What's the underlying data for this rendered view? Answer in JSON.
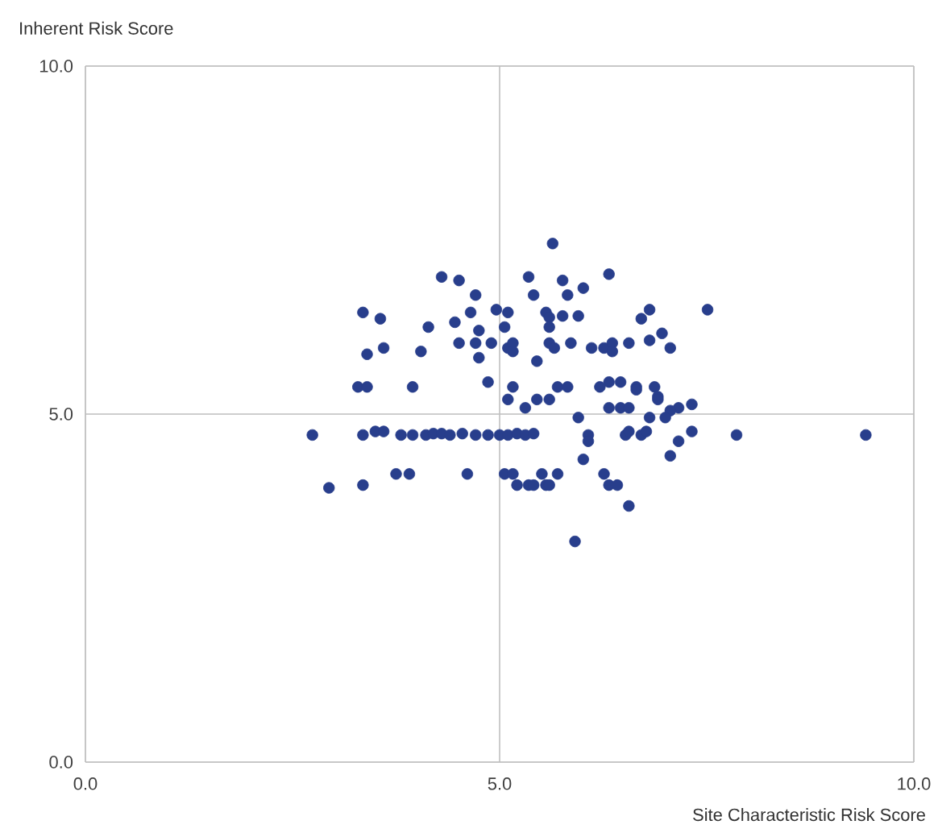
{
  "chart_data": {
    "type": "scatter",
    "xlabel": "Site Characteristic Risk Score",
    "ylabel": "Inherent Risk Score",
    "xlim": [
      0,
      10
    ],
    "ylim": [
      0,
      10
    ],
    "xticks": [
      {
        "value": 0,
        "label": "0.0"
      },
      {
        "value": 5,
        "label": "5.0"
      },
      {
        "value": 10,
        "label": "10.0"
      }
    ],
    "yticks": [
      {
        "value": 0,
        "label": "0.0"
      },
      {
        "value": 5,
        "label": "5.0"
      },
      {
        "value": 10,
        "label": "10.0"
      }
    ],
    "grid": true,
    "marker": "circle",
    "series": [
      {
        "color": "#283e8c",
        "x": [
          5.64,
          4.3,
          4.51,
          5.35,
          5.76,
          6.01,
          4.71,
          5.41,
          5.82,
          3.35,
          3.56,
          4.65,
          4.96,
          5.1,
          5.56,
          5.6,
          5.76,
          5.95,
          4.14,
          4.46,
          4.75,
          5.06,
          5.6,
          3.4,
          3.6,
          4.05,
          4.51,
          4.71,
          4.9,
          5.1,
          5.16,
          5.16,
          5.6,
          5.66,
          5.86,
          6.11,
          4.75,
          5.45,
          3.29,
          3.4,
          3.95,
          4.86,
          5.16,
          5.7,
          5.82,
          5.1,
          5.31,
          5.45,
          5.6,
          5.95,
          2.74,
          3.35,
          3.5,
          3.6,
          3.81,
          3.95,
          4.11,
          4.2,
          4.3,
          4.4,
          4.55,
          4.71,
          4.86,
          5.0,
          5.1,
          5.21,
          5.31,
          5.41,
          6.07,
          6.07,
          6.01,
          3.75,
          3.91,
          4.61,
          5.06,
          5.16,
          5.51,
          5.7,
          2.94,
          3.35,
          5.21,
          5.35,
          5.41,
          5.56,
          5.6,
          5.91,
          6.32,
          6.81,
          7.51,
          6.71,
          6.96,
          6.81,
          6.56,
          7.06,
          6.26,
          6.36,
          6.36,
          6.21,
          6.32,
          6.46,
          6.65,
          6.65,
          6.87,
          6.91,
          6.91,
          6.32,
          6.46,
          6.56,
          7.32,
          7.16,
          7.06,
          7.0,
          6.81,
          6.52,
          6.56,
          6.71,
          6.77,
          7.32,
          7.16,
          7.86,
          9.42,
          7.06,
          6.26,
          6.32,
          6.42,
          6.56
        ],
        "values": [
          7.45,
          6.97,
          6.92,
          6.97,
          6.92,
          6.81,
          6.71,
          6.71,
          6.71,
          6.46,
          6.37,
          6.46,
          6.5,
          6.46,
          6.46,
          6.39,
          6.41,
          6.41,
          6.25,
          6.32,
          6.2,
          6.25,
          6.25,
          5.86,
          5.95,
          5.9,
          6.02,
          6.02,
          6.02,
          5.95,
          6.02,
          5.9,
          6.02,
          5.95,
          6.02,
          5.95,
          5.81,
          5.76,
          5.39,
          5.39,
          5.39,
          5.46,
          5.39,
          5.39,
          5.39,
          5.21,
          5.09,
          5.21,
          5.21,
          4.95,
          4.7,
          4.7,
          4.75,
          4.75,
          4.7,
          4.7,
          4.7,
          4.72,
          4.72,
          4.7,
          4.72,
          4.7,
          4.7,
          4.7,
          4.7,
          4.72,
          4.7,
          4.72,
          4.7,
          4.61,
          4.35,
          4.14,
          4.14,
          4.14,
          4.14,
          4.14,
          4.14,
          4.14,
          3.94,
          3.98,
          3.98,
          3.98,
          3.98,
          3.98,
          3.98,
          3.17,
          7.01,
          6.5,
          6.5,
          6.37,
          6.16,
          6.06,
          6.02,
          5.95,
          5.95,
          6.02,
          5.9,
          5.39,
          5.46,
          5.46,
          5.39,
          5.35,
          5.39,
          5.25,
          5.21,
          5.09,
          5.09,
          5.09,
          5.14,
          5.09,
          5.05,
          4.95,
          4.95,
          4.7,
          4.75,
          4.7,
          4.75,
          4.75,
          4.61,
          4.7,
          4.7,
          4.4,
          4.14,
          3.98,
          3.98,
          3.68
        ]
      }
    ]
  }
}
